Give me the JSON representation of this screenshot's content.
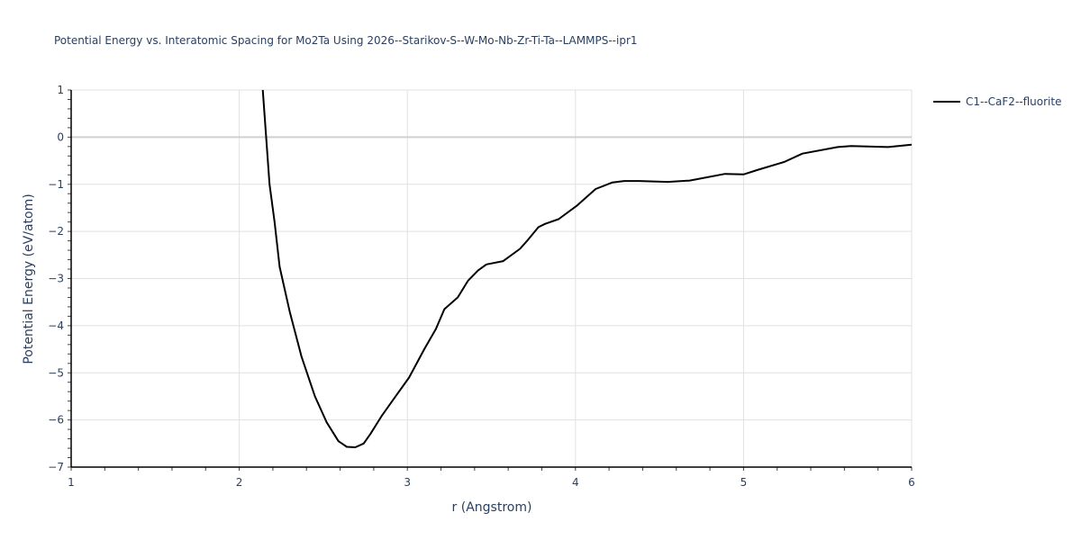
{
  "chart_data": {
    "type": "line",
    "title": "Potential Energy vs. Interatomic Spacing for Mo2Ta Using 2026--Starikov-S--W-Mo-Nb-Zr-Ti-Ta--LAMMPS--ipr1",
    "xlabel": "r (Angstrom)",
    "ylabel": "Potential Energy (eV/atom)",
    "xlim": [
      1,
      6
    ],
    "ylim": [
      -7,
      1
    ],
    "xticks": [
      1,
      2,
      3,
      4,
      5,
      6
    ],
    "yticks": [
      1,
      0,
      -1,
      -2,
      -3,
      -4,
      -5,
      -6,
      -7
    ],
    "grid": true,
    "legend_position": "right-top",
    "series": [
      {
        "name": "C1--CaF2--fluorite",
        "color": "#000000",
        "x": [
          2.14,
          2.18,
          2.21,
          2.24,
          2.3,
          2.37,
          2.45,
          2.52,
          2.59,
          2.64,
          2.69,
          2.74,
          2.78,
          2.85,
          2.93,
          3.01,
          3.1,
          3.17,
          3.22,
          3.3,
          3.36,
          3.42,
          3.47,
          3.57,
          3.67,
          3.71,
          3.78,
          3.82,
          3.9,
          4.01,
          4.12,
          4.22,
          4.29,
          4.38,
          4.55,
          4.68,
          4.89,
          5.0,
          5.08,
          5.24,
          5.35,
          5.56,
          5.64,
          5.86,
          6.0
        ],
        "y": [
          1.0,
          -1.0,
          -1.8,
          -2.75,
          -3.7,
          -4.65,
          -5.5,
          -6.05,
          -6.45,
          -6.57,
          -6.58,
          -6.5,
          -6.3,
          -5.9,
          -5.5,
          -5.1,
          -4.5,
          -4.07,
          -3.65,
          -3.4,
          -3.05,
          -2.83,
          -2.7,
          -2.63,
          -2.37,
          -2.21,
          -1.91,
          -1.84,
          -1.74,
          -1.45,
          -1.1,
          -0.96,
          -0.93,
          -0.93,
          -0.95,
          -0.92,
          -0.78,
          -0.79,
          -0.7,
          -0.53,
          -0.35,
          -0.21,
          -0.19,
          -0.21,
          -0.16
        ]
      }
    ]
  }
}
